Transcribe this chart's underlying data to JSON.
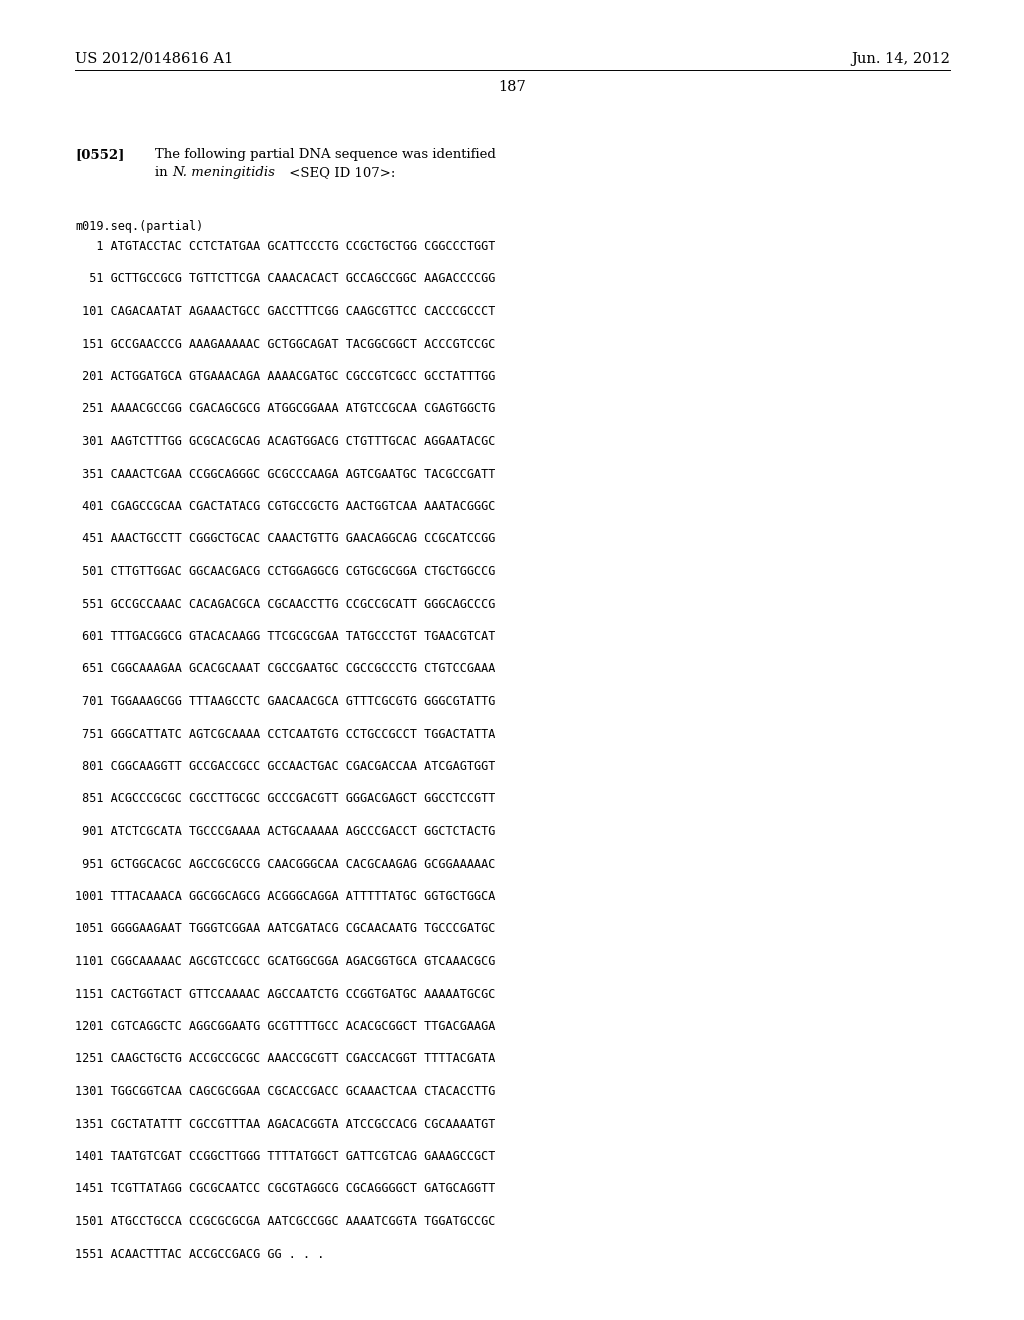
{
  "header_left": "US 2012/0148616 A1",
  "header_right": "Jun. 14, 2012",
  "page_number": "187",
  "paragraph_label": "[0552]",
  "seq_header": "m019.seq.(partial)",
  "sequence_lines": [
    "   1 ATGTACCTAC CCTCTATGAA GCATTCCCTG CCGCTGCTGG CGGCCCTGGT",
    "  51 GCTTGCCGCG TGTTCTTCGA CAAACACACT GCCAGCCGGC AAGACCCCGG",
    " 101 CAGACAATAT AGAAACTGCC GACCTTTCGG CAAGCGTTCC CACCCGCCCT",
    " 151 GCCGAACCCG AAAGAAAAAC GCTGGCAGAT TACGGCGGCT ACCCGTCCGC",
    " 201 ACTGGATGCA GTGAAACAGA AAAACGATGC CGCCGTCGCC GCCTATTTGG",
    " 251 AAAACGCCGG CGACAGCGCG ATGGCGGAAA ATGTCCGCAA CGAGTGGCTG",
    " 301 AAGTCTTTGG GCGCACGCAG ACAGTGGACG CTGTTTGCAC AGGAATACGC",
    " 351 CAAACTCGAA CCGGCAGGGC GCGCCCAAGA AGTCGAATGC TACGCCGATT",
    " 401 CGAGCCGCAA CGACTATACG CGTGCCGCTG AACTGGTCAA AAATACGGGC",
    " 451 AAACTGCCTT CGGGCTGCAC CAAACTGTTG GAACAGGCAG CCGCATCCGG",
    " 501 CTTGTTGGAC GGCAACGACG CCTGGAGGCG CGTGCGCGGA CTGCTGGCCG",
    " 551 GCCGCCAAAC CACAGACGCA CGCAACCTTG CCGCCGCATT GGGCAGCCCG",
    " 601 TTTGACGGCG GTACACAAGG TTCGCGCGAA TATGCCCTGT TGAACGTCAT",
    " 651 CGGCAAAGAA GCACGCAAAT CGCCGAATGC CGCCGCCCTG CTGTCCGAAA",
    " 701 TGGAAAGCGG TTTAAGCCTC GAACAACGCA GTTTCGCGTG GGGCGTATTG",
    " 751 GGGCATTATC AGTCGCAAAA CCTCAATGTG CCTGCCGCCT TGGACTATTA",
    " 801 CGGCAAGGTT GCCGACCGCC GCCAACTGAC CGACGACCAA ATCGAGTGGT",
    " 851 ACGCCCGCGC CGCCTTGCGC GCCCGACGTT GGGACGAGCT GGCCTCCGTT",
    " 901 ATCTCGCATA TGCCCGAAAA ACTGCAAAAA AGCCCGACCT GGCTCTACTG",
    " 951 GCTGGCACGC AGCCGCGCCG CAACGGGCAA CACGCAAGAG GCGGAAAAAC",
    "1001 TTTACAAACA GGCGGCAGCG ACGGGCAGGA ATTTTTATGC GGTGCTGGCA",
    "1051 GGGGAAGAAT TGGGTCGGAA AATCGATACG CGCAACAATG TGCCCGATGC",
    "1101 CGGCAAAAAC AGCGTCCGCC GCATGGCGGA AGACGGTGCA GTCAAACGCG",
    "1151 CACTGGTACT GTTCCAAAAC AGCCAATCTG CCGGTGATGC AAAAATGCGC",
    "1201 CGTCAGGCTC AGGCGGAATG GCGTTTTGCC ACACGCGGCT TTGACGAAGA",
    "1251 CAAGCTGCTG ACCGCCGCGC AAACCGCGTT CGACCACGGT TTTTACGATA",
    "1301 TGGCGGTCAA CAGCGCGGAA CGCACCGACC GCAAACTCAA CTACACCTTG",
    "1351 CGCTATATTT CGCCGTTTAA AGACACGGTA ATCCGCCACG CGCAAAATGT",
    "1401 TAATGTCGAT CCGGCTTGGG TTTTATGGCT GATTCGTCAG GAAAGCCGCT",
    "1451 TCGTTATAGG CGCGCAATCC CGCGTAGGCG CGCAGGGGCT GATGCAGGTT",
    "1501 ATGCCTGCCA CCGCGCGCGA AATCGCCGGC AAAATCGGTA TGGATGCCGC",
    "1551 ACAACTTTAC ACCGCCGACG GG . . ."
  ],
  "background_color": "#ffffff",
  "text_color": "#000000"
}
